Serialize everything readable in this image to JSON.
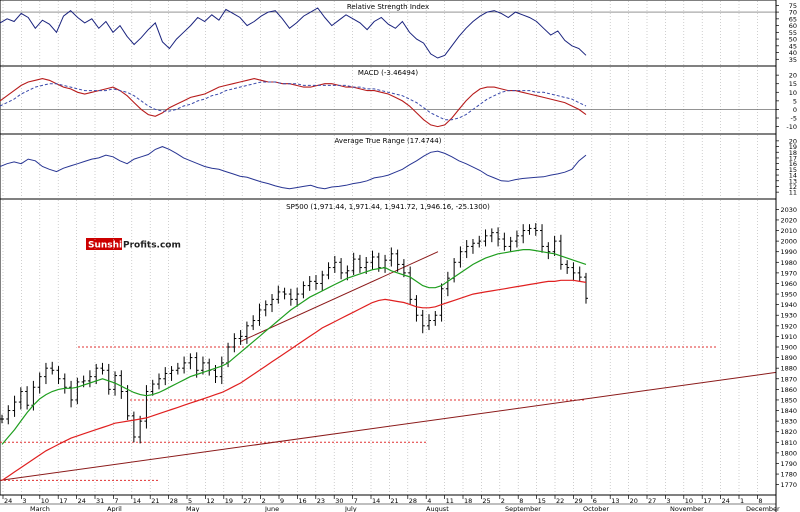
{
  "brand": {
    "logo_part1": "Sunshine",
    "logo_part2": "Profits.com",
    "logo_color": "#cc0000"
  },
  "colors": {
    "rsi": "#1a237e",
    "macd": "#b71c1c",
    "macd_signal": "#3949ab",
    "atr": "#283593",
    "price": "#000000",
    "ma50": "#1f9e1f",
    "ma200": "#e02020",
    "trend": "#8b1a1a",
    "support": "#e03030",
    "grid": "#b0b0b0"
  },
  "chart_data": [
    {
      "type": "line",
      "title": "Relative Strength Index",
      "ylim": [
        33,
        76
      ],
      "y_ticks": [
        35,
        40,
        45,
        50,
        55,
        60,
        65,
        70,
        75
      ],
      "reference_lines": [
        70
      ],
      "series": [
        {
          "values": [
            62,
            65,
            63,
            69,
            66,
            58,
            64,
            61,
            55,
            67,
            71,
            66,
            62,
            65,
            58,
            63,
            55,
            60,
            52,
            46,
            51,
            57,
            62,
            48,
            43,
            50,
            55,
            60,
            66,
            63,
            68,
            64,
            72,
            69,
            66,
            60,
            63,
            67,
            70,
            71,
            65,
            58,
            62,
            67,
            70,
            73,
            66,
            60,
            64,
            68,
            65,
            62,
            57,
            63,
            66,
            61,
            58,
            63,
            55,
            50,
            47,
            39,
            36,
            38,
            45,
            52,
            58,
            63,
            67,
            70,
            71,
            69,
            66,
            70,
            68,
            66,
            63,
            58,
            53,
            56,
            49,
            45,
            43,
            38
          ]
        }
      ]
    },
    {
      "type": "line",
      "title": "MACD (-3.46494)",
      "ylim": [
        -12,
        23
      ],
      "y_ticks": [
        -10,
        -5,
        0,
        5,
        10,
        15,
        20
      ],
      "reference_lines": [
        0
      ],
      "series": [
        {
          "values": [
            5,
            8,
            11,
            14,
            16,
            17,
            18,
            17,
            15,
            13,
            12,
            10,
            9,
            10,
            11,
            12,
            13,
            11,
            8,
            4,
            0,
            -3,
            -4,
            -2,
            1,
            3,
            5,
            7,
            8,
            9,
            11,
            13,
            14,
            15,
            16,
            17,
            18,
            17,
            16,
            16,
            15,
            15,
            14,
            13,
            13,
            14,
            15,
            15,
            14,
            13,
            13,
            12,
            11,
            11,
            10,
            9,
            7,
            5,
            2,
            -2,
            -6,
            -9,
            -10,
            -9,
            -5,
            0,
            5,
            9,
            12,
            13,
            13,
            12,
            11,
            11,
            10,
            9,
            8,
            7,
            6,
            5,
            4,
            2,
            0,
            -3
          ]
        },
        {
          "values": [
            2,
            4,
            6,
            9,
            11,
            13,
            14,
            15,
            15,
            14,
            13,
            12,
            11,
            11,
            11,
            11,
            12,
            11,
            10,
            8,
            5,
            2,
            0,
            -1,
            -1,
            0,
            2,
            3,
            5,
            6,
            8,
            9,
            11,
            12,
            13,
            14,
            15,
            16,
            16,
            16,
            15,
            15,
            15,
            14,
            14,
            14,
            14,
            14,
            14,
            14,
            13,
            13,
            12,
            12,
            11,
            10,
            9,
            8,
            6,
            4,
            1,
            -2,
            -4,
            -6,
            -6,
            -5,
            -3,
            0,
            3,
            6,
            8,
            10,
            11,
            11,
            11,
            11,
            10,
            10,
            9,
            8,
            7,
            6,
            4,
            2
          ]
        }
      ]
    },
    {
      "type": "line",
      "title": "Average True Range (17.4744)",
      "ylim": [
        10.5,
        20.5
      ],
      "y_ticks": [
        11,
        12,
        13,
        14,
        15,
        16,
        17,
        18,
        19,
        20
      ],
      "series": [
        {
          "values": [
            15.5,
            16.0,
            16.3,
            16.0,
            16.8,
            16.5,
            15.5,
            15.0,
            14.6,
            15.2,
            15.6,
            16.0,
            16.4,
            16.8,
            17.0,
            17.5,
            17.2,
            16.5,
            16.0,
            16.8,
            17.2,
            17.6,
            18.5,
            19.0,
            18.5,
            17.8,
            17.0,
            16.5,
            16.0,
            15.5,
            15.2,
            15.0,
            14.6,
            14.2,
            13.8,
            13.6,
            13.2,
            12.8,
            12.5,
            12.1,
            11.8,
            11.6,
            11.8,
            12.0,
            12.2,
            11.8,
            11.6,
            11.9,
            12.0,
            12.2,
            12.5,
            12.7,
            13.0,
            13.5,
            13.7,
            14.0,
            14.5,
            15.0,
            15.8,
            16.5,
            17.3,
            18.0,
            18.2,
            17.8,
            17.2,
            16.5,
            16.0,
            15.4,
            14.8,
            14.0,
            13.5,
            13.0,
            12.9,
            13.2,
            13.4,
            13.5,
            13.6,
            13.7,
            14.0,
            14.2,
            14.5,
            15.0,
            16.5,
            17.5
          ]
        }
      ]
    },
    {
      "type": "line",
      "title": "SP500 (1,971.44, 1,971.44, 1,941.72, 1,946.16, -25.1300)",
      "ylim": [
        1764,
        2036
      ],
      "y_ticks": [
        1770,
        1780,
        1790,
        1800,
        1810,
        1820,
        1830,
        1840,
        1850,
        1860,
        1870,
        1880,
        1890,
        1900,
        1910,
        1920,
        1930,
        1940,
        1950,
        1960,
        1970,
        1980,
        1990,
        2000,
        2010,
        2020,
        2030
      ],
      "x_tick_labels": [
        "24",
        "3",
        "10",
        "17",
        "24",
        "31",
        "7",
        "14",
        "21",
        "28",
        "5",
        "12",
        "19",
        "27",
        "2",
        "9",
        "16",
        "23",
        "30",
        "7",
        "14",
        "21",
        "28",
        "4",
        "11",
        "18",
        "25",
        "2",
        "8",
        "15",
        "22",
        "29",
        "6",
        "13",
        "20",
        "27",
        "3",
        "10",
        "17",
        "24",
        "1",
        "8"
      ],
      "month_labels": [
        "March",
        "April",
        "May",
        "June",
        "July",
        "August",
        "September",
        "October",
        "November",
        "December"
      ],
      "support_lines": [
        1900,
        1850,
        1810,
        1774
      ],
      "series": [
        {
          "name": "",
          "values": [
            1832,
            1840,
            1848,
            1858,
            1845,
            1862,
            1872,
            1880,
            1878,
            1870,
            1862,
            1850,
            1867,
            1868,
            1872,
            1880,
            1878,
            1860,
            1873,
            1858,
            1835,
            1815,
            1830,
            1858,
            1865,
            1870,
            1875,
            1878,
            1880,
            1885,
            1890,
            1878,
            1885,
            1878,
            1872,
            1885,
            1900,
            1908,
            1910,
            1920,
            1925,
            1935,
            1940,
            1945,
            1952,
            1950,
            1945,
            1950,
            1958,
            1962,
            1960,
            1968,
            1975,
            1980,
            1970,
            1972,
            1983,
            1975,
            1980,
            1985,
            1975,
            1982,
            1988,
            1978,
            1970,
            1945,
            1930,
            1920,
            1925,
            1930,
            1955,
            1965,
            1980,
            1990,
            1995,
            1998,
            2000,
            2005,
            2008,
            2002,
            1995,
            2000,
            2005,
            2010,
            2012,
            2010,
            1995,
            1990,
            2000,
            1978,
            1975,
            1970,
            1966,
            1946
          ]
        },
        {
          "name": "",
          "values": [
            1808,
            1815,
            1822,
            1830,
            1838,
            1845,
            1851,
            1855,
            1858,
            1860,
            1861,
            1861,
            1862,
            1864,
            1866,
            1868,
            1870,
            1868,
            1866,
            1863,
            1860,
            1857,
            1855,
            1854,
            1855,
            1857,
            1860,
            1863,
            1866,
            1869,
            1872,
            1874,
            1876,
            1878,
            1880,
            1882,
            1885,
            1890,
            1895,
            1900,
            1905,
            1910,
            1915,
            1920,
            1925,
            1930,
            1935,
            1939,
            1943,
            1947,
            1950,
            1953,
            1956,
            1959,
            1962,
            1965,
            1967,
            1969,
            1971,
            1973,
            1974,
            1975,
            1972,
            1970,
            1968,
            1966,
            1962,
            1958,
            1956,
            1956,
            1958,
            1962,
            1966,
            1970,
            1974,
            1978,
            1981,
            1984,
            1986,
            1988,
            1989,
            1990,
            1991,
            1992,
            1992,
            1991,
            1990,
            1989,
            1988,
            1986,
            1984,
            1982,
            1980,
            1978
          ]
        },
        {
          "name": "",
          "values": [
            1774,
            1778,
            1782,
            1786,
            1790,
            1794,
            1798,
            1802,
            1805,
            1808,
            1811,
            1814,
            1816,
            1818,
            1820,
            1822,
            1824,
            1826,
            1828,
            1829,
            1830,
            1831,
            1832,
            1833,
            1835,
            1837,
            1839,
            1841,
            1843,
            1845,
            1847,
            1849,
            1851,
            1853,
            1855,
            1857,
            1860,
            1863,
            1866,
            1870,
            1874,
            1878,
            1882,
            1886,
            1890,
            1894,
            1898,
            1902,
            1906,
            1910,
            1914,
            1918,
            1921,
            1924,
            1927,
            1930,
            1933,
            1936,
            1939,
            1942,
            1944,
            1945,
            1944,
            1943,
            1942,
            1940,
            1938,
            1937,
            1937,
            1938,
            1940,
            1942,
            1944,
            1946,
            1948,
            1950,
            1951,
            1952,
            1953,
            1954,
            1955,
            1956,
            1957,
            1958,
            1959,
            1960,
            1961,
            1962,
            1962,
            1963,
            1963,
            1963,
            1962,
            1961
          ]
        }
      ]
    }
  ]
}
